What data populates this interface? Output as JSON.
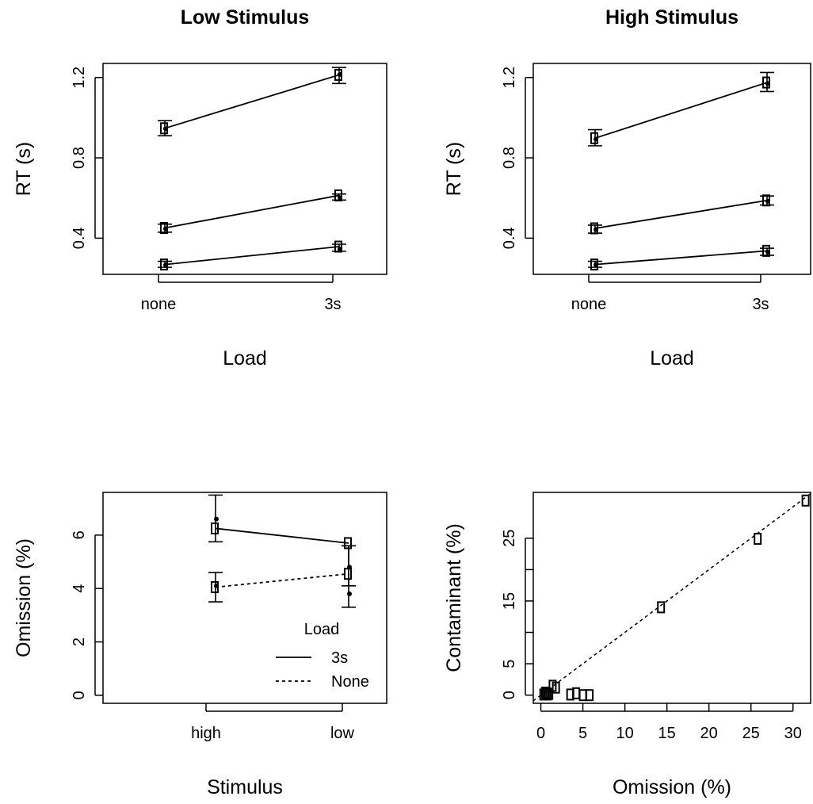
{
  "chart_data": [
    {
      "id": "low-stimulus-rt",
      "type": "line",
      "title": "Low Stimulus",
      "xlabel": "Load",
      "ylabel": "RT (s)",
      "categories": [
        "none",
        "3s"
      ],
      "yticks": [
        "0.4",
        "0.8",
        "1.2"
      ],
      "ylim": [
        0.22,
        1.27
      ],
      "series": [
        {
          "observed": [
            0.947,
            1.213
          ],
          "predicted": [
            0.945,
            1.215
          ],
          "error": [
            [
              0.91,
              0.985
            ],
            [
              1.17,
              1.25
            ]
          ]
        },
        {
          "observed": [
            0.451,
            0.613
          ],
          "predicted": [
            0.447,
            0.601
          ],
          "error": [
            [
              0.43,
              0.47
            ],
            [
              0.59,
              0.62
            ]
          ]
        },
        {
          "observed": [
            0.269,
            0.358
          ],
          "predicted": [
            0.267,
            0.346
          ],
          "error": [
            [
              0.255,
              0.285
            ],
            [
              0.335,
              0.37
            ]
          ]
        }
      ]
    },
    {
      "id": "high-stimulus-rt",
      "type": "line",
      "title": "High Stimulus",
      "xlabel": "Load",
      "ylabel": "RT (s)",
      "categories": [
        "none",
        "3s"
      ],
      "yticks": [
        "0.4",
        "0.8",
        "1.2"
      ],
      "ylim": [
        0.22,
        1.27
      ],
      "series": [
        {
          "observed": [
            0.898,
            1.175
          ],
          "predicted": [
            0.893,
            1.17
          ],
          "error": [
            [
              0.86,
              0.94
            ],
            [
              1.13,
              1.225
            ]
          ]
        },
        {
          "observed": [
            0.449,
            0.588
          ],
          "predicted": [
            0.443,
            0.584
          ],
          "error": [
            [
              0.425,
              0.465
            ],
            [
              0.565,
              0.61
            ]
          ]
        },
        {
          "observed": [
            0.269,
            0.337
          ],
          "predicted": [
            0.268,
            0.331
          ],
          "error": [
            [
              0.255,
              0.285
            ],
            [
              0.315,
              0.35
            ]
          ]
        }
      ]
    },
    {
      "id": "omission",
      "type": "line",
      "title": "",
      "xlabel": "Stimulus",
      "ylabel": "Omission (%)",
      "categories": [
        "high",
        "low"
      ],
      "yticks": [
        "0",
        "2",
        "4",
        "6"
      ],
      "ylim": [
        -0.3,
        7.6
      ],
      "legend": {
        "title": "Load",
        "position": "bottom-right",
        "entries": [
          "3s",
          "None"
        ]
      },
      "series": [
        {
          "name": "3s",
          "dash": "solid",
          "observed": [
            6.25,
            5.7
          ],
          "predicted": [
            6.6,
            4.8
          ],
          "error": [
            [
              5.75,
              7.5
            ],
            [
              4.1,
              5.6
            ]
          ]
        },
        {
          "name": "None",
          "dash": "dotted",
          "observed": [
            4.05,
            4.55
          ],
          "predicted": [
            4.1,
            3.8
          ],
          "error": [
            [
              3.5,
              4.6
            ],
            [
              3.3,
              5.6
            ]
          ]
        }
      ]
    },
    {
      "id": "contaminant-vs-omission",
      "type": "scatter",
      "title": "",
      "xlabel": "Omission (%)",
      "ylabel": "Contaminant (%)",
      "xticks": [
        "0",
        "5",
        "10",
        "15",
        "20",
        "25",
        "30"
      ],
      "yticks": [
        "0",
        "5",
        "15",
        "25"
      ],
      "xlim": [
        -0.9,
        32.1
      ],
      "ylim": [
        -1.3,
        32.3
      ],
      "identity_line": true,
      "points": [
        [
          0.3,
          0.1
        ],
        [
          0.5,
          0.4
        ],
        [
          0.6,
          0.2
        ],
        [
          0.8,
          0.1
        ],
        [
          1.0,
          0.2
        ],
        [
          1.4,
          1.5
        ],
        [
          1.8,
          1.2
        ],
        [
          3.5,
          0.1
        ],
        [
          4.2,
          0.3
        ],
        [
          5.0,
          0.0
        ],
        [
          5.8,
          0.0
        ],
        [
          14.3,
          14.0
        ],
        [
          25.8,
          24.9
        ],
        [
          31.5,
          31.0
        ]
      ]
    }
  ]
}
